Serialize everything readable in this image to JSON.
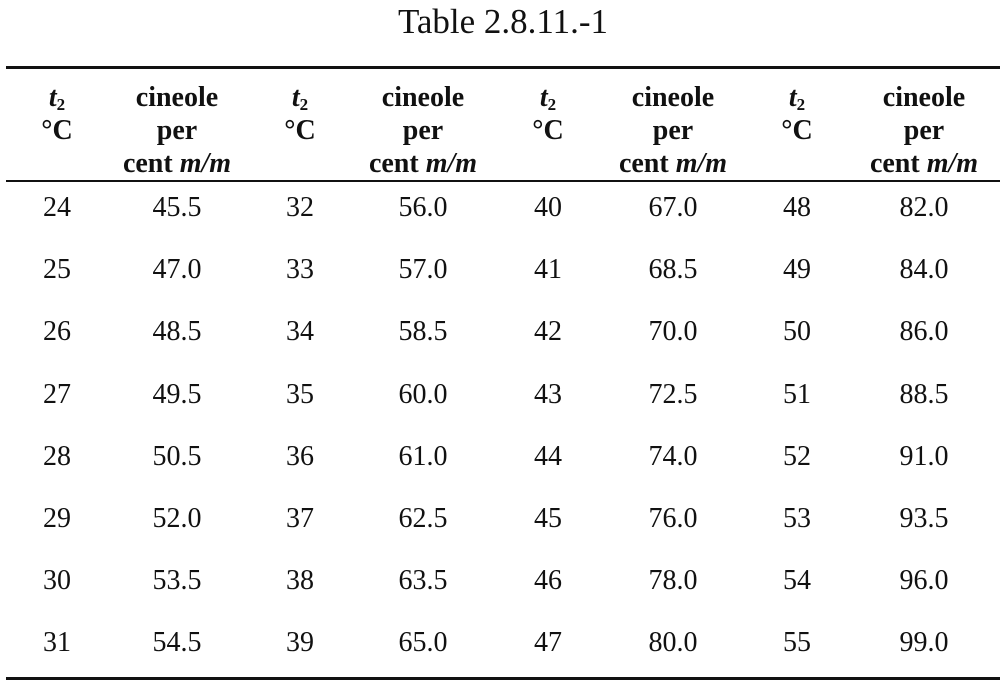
{
  "title": "Table 2.8.11.-1",
  "table": {
    "header": [
      {
        "symbol": "t",
        "subscript": "2",
        "unit": "°C"
      },
      {
        "lines": [
          "cineole",
          "per",
          "cent"
        ],
        "unit": "m/m"
      },
      {
        "symbol": "t",
        "subscript": "2",
        "unit": "°C"
      },
      {
        "lines": [
          "cineole",
          "per",
          "cent"
        ],
        "unit": "m/m"
      },
      {
        "symbol": "t",
        "subscript": "2",
        "unit": "°C"
      },
      {
        "lines": [
          "cineole",
          "per",
          "cent"
        ],
        "unit": "m/m"
      },
      {
        "symbol": "t",
        "subscript": "2",
        "unit": "°C"
      },
      {
        "lines": [
          "cineole",
          "per",
          "cent"
        ],
        "unit": "m/m"
      }
    ],
    "rows": [
      [
        "24",
        "45.5",
        "32",
        "56.0",
        "40",
        "67.0",
        "48",
        "82.0"
      ],
      [
        "25",
        "47.0",
        "33",
        "57.0",
        "41",
        "68.5",
        "49",
        "84.0"
      ],
      [
        "26",
        "48.5",
        "34",
        "58.5",
        "42",
        "70.0",
        "50",
        "86.0"
      ],
      [
        "27",
        "49.5",
        "35",
        "60.0",
        "43",
        "72.5",
        "51",
        "88.5"
      ],
      [
        "28",
        "50.5",
        "36",
        "61.0",
        "44",
        "74.0",
        "52",
        "91.0"
      ],
      [
        "29",
        "52.0",
        "37",
        "62.5",
        "45",
        "76.0",
        "53",
        "93.5"
      ],
      [
        "30",
        "53.5",
        "38",
        "63.5",
        "46",
        "78.0",
        "54",
        "96.0"
      ],
      [
        "31",
        "54.5",
        "39",
        "65.0",
        "47",
        "80.0",
        "55",
        "99.0"
      ]
    ]
  }
}
